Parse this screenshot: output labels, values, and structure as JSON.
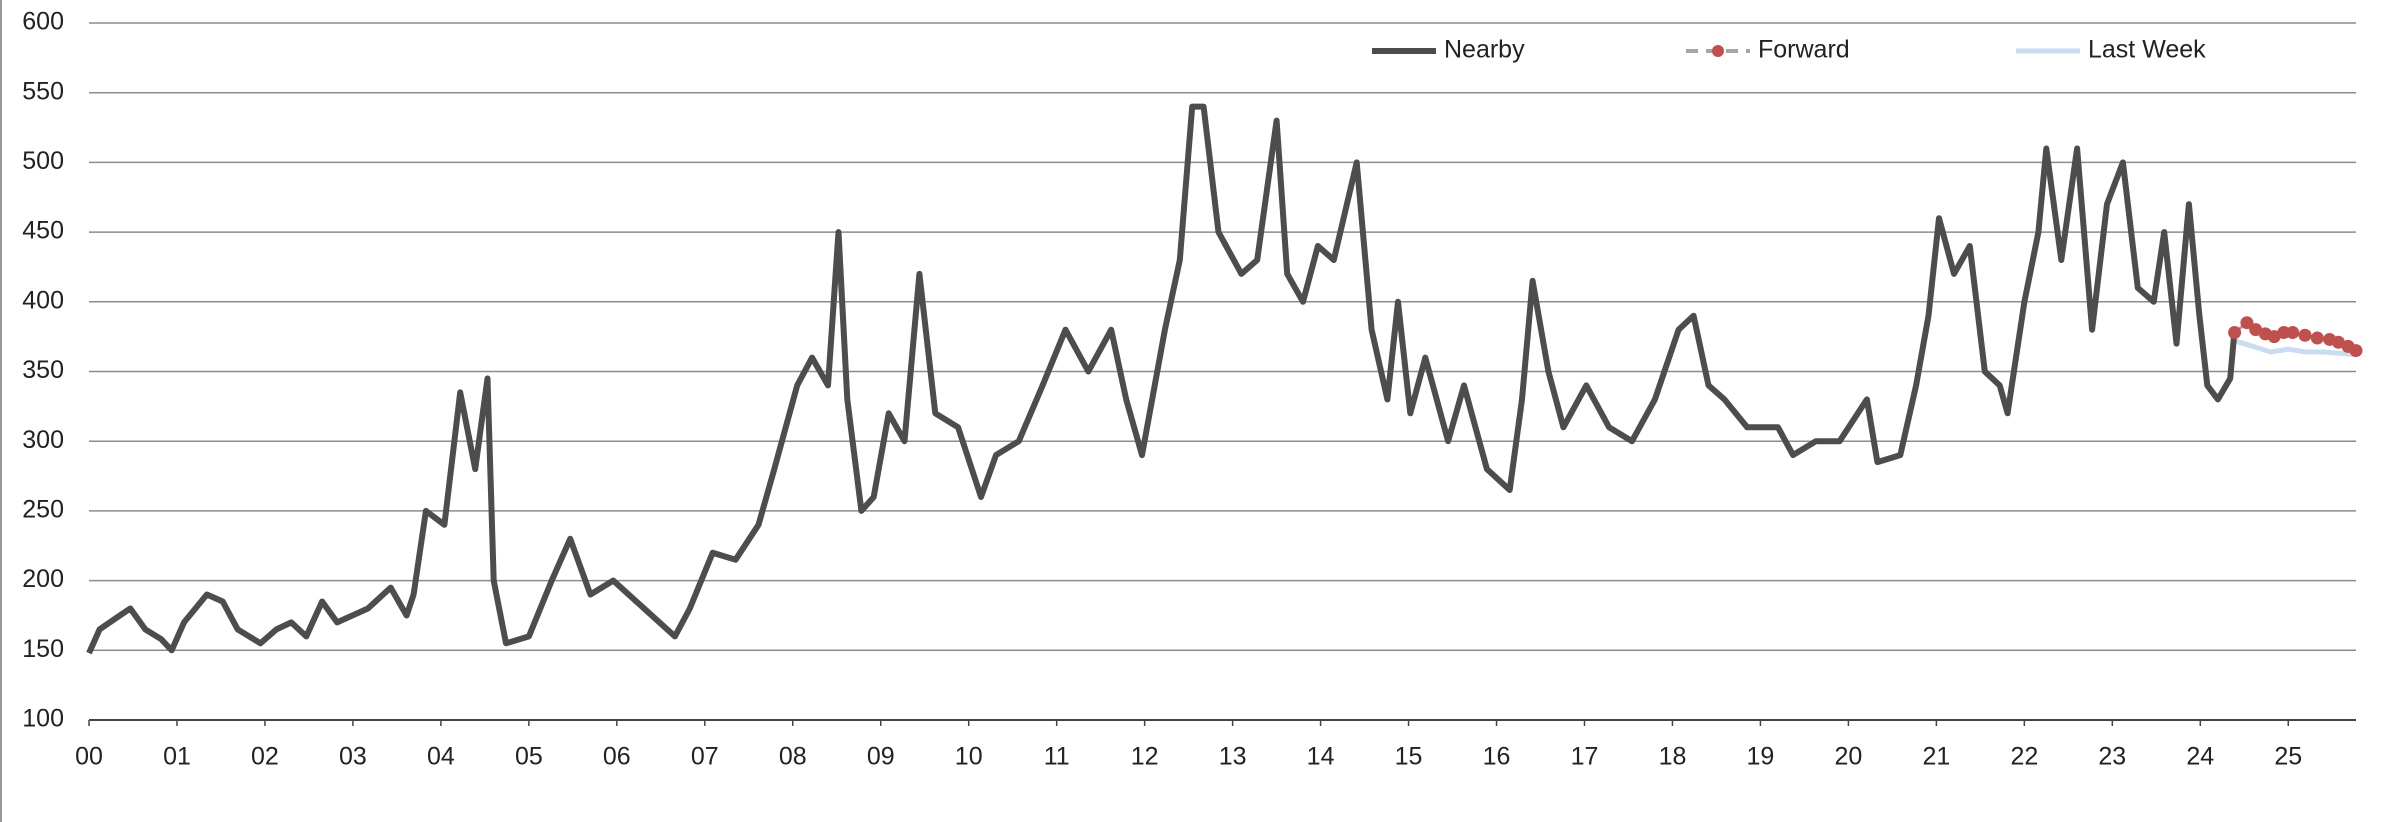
{
  "chart_data": {
    "type": "line",
    "xlim": [
      0,
      25.77
    ],
    "xticks": [
      {
        "value": 0,
        "label": "00"
      },
      {
        "value": 1,
        "label": "01"
      },
      {
        "value": 2,
        "label": "02"
      },
      {
        "value": 3,
        "label": "03"
      },
      {
        "value": 4,
        "label": "04"
      },
      {
        "value": 5,
        "label": "05"
      },
      {
        "value": 6,
        "label": "06"
      },
      {
        "value": 7,
        "label": "07"
      },
      {
        "value": 8,
        "label": "08"
      },
      {
        "value": 9,
        "label": "09"
      },
      10,
      11,
      12,
      13,
      14,
      15,
      16,
      17,
      18,
      19,
      20,
      21,
      22,
      23,
      24,
      25
    ],
    "ylim": [
      100,
      600
    ],
    "yticks": [
      100,
      150,
      200,
      250,
      300,
      350,
      400,
      450,
      500,
      550,
      600
    ],
    "grid": true,
    "legend": "top",
    "series": [
      {
        "name": "Nearby",
        "color": "#4d4d4d",
        "style": "solid",
        "x": [
          0,
          0.12,
          0.35,
          0.47,
          0.64,
          0.82,
          0.94,
          1.08,
          1.34,
          1.52,
          1.69,
          1.95,
          2.13,
          2.3,
          2.47,
          2.65,
          2.82,
          3.17,
          3.43,
          3.61,
          3.69,
          3.83,
          4.04,
          4.22,
          4.39,
          4.53,
          4.6,
          4.74,
          5.0,
          5.26,
          5.47,
          5.7,
          5.96,
          6.31,
          6.66,
          6.83,
          7.09,
          7.35,
          7.61,
          7.79,
          8.05,
          8.22,
          8.4,
          8.52,
          8.62,
          8.78,
          8.92,
          9.09,
          9.27,
          9.44,
          9.62,
          9.88,
          10.14,
          10.31,
          10.57,
          10.84,
          11.1,
          11.36,
          11.62,
          11.79,
          11.97,
          12.23,
          12.4,
          12.54,
          12.67,
          12.84,
          13.1,
          13.28,
          13.5,
          13.62,
          13.8,
          13.97,
          14.15,
          14.41,
          14.58,
          14.76,
          14.88,
          15.02,
          15.19,
          15.45,
          15.63,
          15.89,
          16.15,
          16.29,
          16.41,
          16.59,
          16.76,
          17.02,
          17.28,
          17.54,
          17.8,
          18.07,
          18.24,
          18.41,
          18.59,
          18.85,
          19.2,
          19.37,
          19.63,
          19.9,
          20.21,
          20.33,
          20.59,
          20.77,
          20.91,
          21.03,
          21.2,
          21.38,
          21.55,
          21.72,
          21.81,
          22.0,
          22.16,
          22.25,
          22.42,
          22.6,
          22.77,
          22.94,
          23.12,
          23.29,
          23.47,
          23.59,
          23.73,
          23.87,
          23.99,
          24.08,
          24.2,
          24.34,
          24.39
        ],
        "values": [
          148,
          165,
          175,
          180,
          165,
          158,
          150,
          170,
          190,
          185,
          165,
          155,
          165,
          170,
          160,
          185,
          170,
          180,
          195,
          175,
          190,
          250,
          240,
          335,
          280,
          345,
          200,
          155,
          160,
          200,
          230,
          190,
          200,
          180,
          160,
          180,
          220,
          215,
          240,
          280,
          340,
          360,
          340,
          450,
          330,
          250,
          260,
          320,
          300,
          420,
          320,
          310,
          260,
          290,
          300,
          340,
          380,
          350,
          380,
          330,
          290,
          380,
          430,
          540,
          540,
          450,
          420,
          430,
          530,
          420,
          400,
          440,
          430,
          500,
          380,
          330,
          400,
          320,
          360,
          300,
          340,
          280,
          265,
          330,
          415,
          350,
          310,
          340,
          310,
          300,
          330,
          380,
          390,
          340,
          330,
          310,
          310,
          290,
          300,
          300,
          330,
          285,
          290,
          340,
          390,
          460,
          420,
          440,
          350,
          340,
          320,
          400,
          450,
          510,
          430,
          510,
          380,
          470,
          500,
          410,
          400,
          450,
          370,
          470,
          390,
          340,
          330,
          345,
          380
        ]
      },
      {
        "name": "Forward",
        "color": "#c0504d",
        "style": "dashdot",
        "x": [
          24.39,
          24.53,
          24.63,
          24.74,
          24.84,
          24.95,
          25.05,
          25.19,
          25.33,
          25.47,
          25.57,
          25.68,
          25.77
        ],
        "values": [
          378,
          385,
          380,
          377,
          375,
          378,
          378,
          376,
          374,
          373,
          371,
          368,
          365
        ]
      },
      {
        "name": "Last Week",
        "color": "#c9dcf0",
        "style": "solid",
        "x": [
          24.39,
          24.6,
          24.8,
          25.0,
          25.2,
          25.4,
          25.6,
          25.77
        ],
        "values": [
          372,
          368,
          364,
          366,
          364,
          364,
          363,
          362
        ]
      }
    ]
  }
}
